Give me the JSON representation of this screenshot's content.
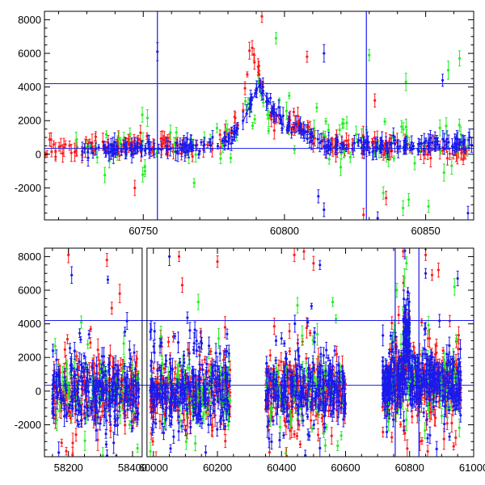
{
  "colors": {
    "red": "#ff1a1a",
    "green": "#22ee22",
    "blue": "#1a1aee",
    "axis": "#000000"
  },
  "chart_data": [
    {
      "type": "scatter",
      "title": "",
      "xlabel": "",
      "ylabel": "",
      "xlim": [
        60715,
        60867
      ],
      "ylim": [
        -3900,
        8500
      ],
      "xticks": [
        60750,
        60800,
        60850
      ],
      "xticks_minor_step": 10,
      "yticks": [
        -2000,
        0,
        2000,
        4000,
        6000,
        8000
      ],
      "yticks_minor_step": 500,
      "hlines": [
        4200,
        350
      ],
      "vlines": [
        60755,
        60829
      ],
      "series": [
        {
          "name": "red",
          "color": "red",
          "errorbars": true,
          "anchors": [
            [
              60715,
              300
            ],
            [
              60727,
              400
            ],
            [
              60740,
              600
            ],
            [
              60755,
              500
            ],
            [
              60770,
              550
            ],
            [
              60780,
              900
            ],
            [
              60785,
              2200
            ],
            [
              60788,
              6500
            ],
            [
              60791,
              5000
            ],
            [
              60795,
              2200
            ],
            [
              60800,
              1800
            ],
            [
              60806,
              1900
            ],
            [
              60810,
              1000
            ],
            [
              60815,
              600
            ],
            [
              60830,
              500
            ],
            [
              60850,
              400
            ],
            [
              60867,
              300
            ]
          ],
          "spread": 700,
          "n": 240
        },
        {
          "name": "green",
          "color": "green",
          "errorbars": true,
          "anchors": [
            [
              60725,
              100
            ],
            [
              60740,
              200
            ],
            [
              60755,
              300
            ],
            [
              60770,
              400
            ],
            [
              60785,
              1500
            ],
            [
              60792,
              3000
            ],
            [
              60800,
              2000
            ],
            [
              60810,
              1200
            ],
            [
              60830,
              600
            ],
            [
              60850,
              500
            ],
            [
              60867,
              600
            ]
          ],
          "spread": 1300,
          "n": 110
        },
        {
          "name": "blue",
          "color": "blue",
          "errorbars": true,
          "anchors": [
            [
              60728,
              250
            ],
            [
              60740,
              300
            ],
            [
              60755,
              400
            ],
            [
              60770,
              450
            ],
            [
              60780,
              700
            ],
            [
              60785,
              1800
            ],
            [
              60788,
              3000
            ],
            [
              60791,
              4100
            ],
            [
              60795,
              3000
            ],
            [
              60800,
              1600
            ],
            [
              60806,
              1500
            ],
            [
              60810,
              900
            ],
            [
              60815,
              500
            ],
            [
              60830,
              500
            ],
            [
              60850,
              550
            ],
            [
              60867,
              600
            ]
          ],
          "spread": 550,
          "n": 300
        }
      ],
      "outliers": {
        "red": [
          [
            60792,
            8200
          ],
          [
            60808,
            5800
          ],
          [
            60828,
            -3600
          ],
          [
            60836,
            -2600
          ],
          [
            60832,
            3200
          ],
          [
            60747,
            -2000
          ]
        ],
        "green": [
          [
            60797,
            6900
          ],
          [
            60830,
            5900
          ],
          [
            60843,
            4300
          ],
          [
            60858,
            5000
          ],
          [
            60862,
            5700
          ],
          [
            60835,
            -2300
          ],
          [
            60844,
            -2700
          ],
          [
            60851,
            -3100
          ],
          [
            60842,
            -3200
          ],
          [
            60768,
            -1700
          ]
        ],
        "blue": [
          [
            60755,
            6100
          ],
          [
            60814,
            6000
          ],
          [
            60856,
            4400
          ],
          [
            60798,
            2800
          ],
          [
            60812,
            -2500
          ],
          [
            60814,
            -3300
          ],
          [
            60833,
            -3800
          ],
          [
            60865,
            -3500
          ]
        ]
      }
    },
    {
      "type": "scatter",
      "title": "",
      "xlabel": "",
      "ylabel": "",
      "xlim": [
        58125,
        61000
      ],
      "ylim": [
        -3900,
        8500
      ],
      "x_broken": true,
      "x_segments": [
        [
          58125,
          58430
        ],
        [
          59980,
          61000
        ]
      ],
      "x_break_gap_px": 6,
      "xticks": [
        58200,
        58400,
        60000,
        60200,
        60400,
        60600,
        60800,
        61000
      ],
      "xticks_minor_step": 50,
      "yticks": [
        -2000,
        0,
        2000,
        4000,
        6000,
        8000
      ],
      "yticks_minor_step": 500,
      "hlines": [
        4200,
        350
      ],
      "vlines": [
        60755,
        60829
      ],
      "clusters": [
        {
          "x": [
            58150,
            58420
          ],
          "center": 0,
          "spread": 1800,
          "n": 260
        },
        {
          "x": [
            59990,
            60240
          ],
          "center": 0,
          "spread": 1800,
          "n": 260
        },
        {
          "x": [
            60350,
            60600
          ],
          "center": 0,
          "spread": 1700,
          "n": 260
        },
        {
          "x": [
            60715,
            60780
          ],
          "center": 400,
          "spread": 1500,
          "n": 120
        },
        {
          "x": [
            60780,
            60800
          ],
          "center": 2800,
          "spread": 2200,
          "n": 80
        },
        {
          "x": [
            60800,
            60960
          ],
          "center": 500,
          "spread": 1600,
          "n": 220
        }
      ],
      "series": [
        {
          "name": "red",
          "color": "red",
          "errorbars": true
        },
        {
          "name": "green",
          "color": "green",
          "errorbars": true
        },
        {
          "name": "blue",
          "color": "blue",
          "errorbars": true
        }
      ],
      "outliers": {
        "red": [
          [
            58200,
            8100
          ],
          [
            58320,
            7800
          ],
          [
            58360,
            5800
          ],
          [
            60080,
            8000
          ],
          [
            60090,
            6300
          ],
          [
            60200,
            7700
          ],
          [
            60440,
            8100
          ],
          [
            60470,
            8300
          ],
          [
            60500,
            7600
          ],
          [
            60780,
            8300
          ],
          [
            60850,
            8100
          ],
          [
            60870,
            6900
          ],
          [
            60890,
            7200
          ]
        ],
        "green": [
          [
            58240,
            4100
          ],
          [
            60140,
            5300
          ],
          [
            60450,
            5100
          ],
          [
            60560,
            5300
          ],
          [
            60760,
            6000
          ],
          [
            60940,
            6200
          ]
        ],
        "blue": [
          [
            58210,
            6900
          ],
          [
            60050,
            8000
          ],
          [
            60520,
            7500
          ],
          [
            60950,
            6700
          ],
          [
            60850,
            7000
          ]
        ]
      }
    }
  ]
}
